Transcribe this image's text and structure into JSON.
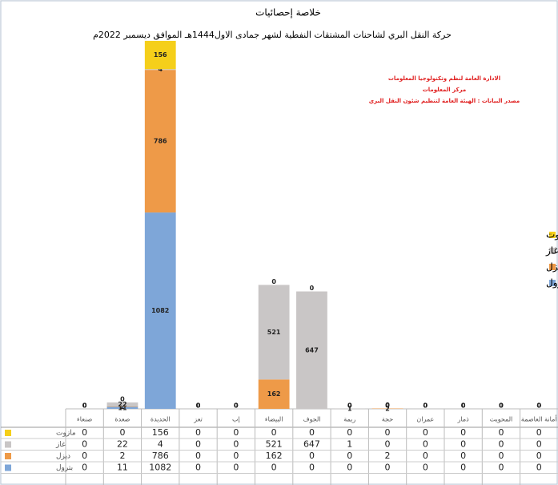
{
  "chart_data": {
    "type": "stacked_bar",
    "title": "خلاصة إحصائيات",
    "subtitle": "حركة النقل البري لشاحنات المشتقات النفطية لشهر جمادى الاول1444هـ الموافق ديسمبر 2022م",
    "annotations": [
      "الادارة العامة لنظم وتكنولوجيا المعلومات",
      "مركز المعلومات",
      "مصدر البيانات : الهيئة العامة لتنظيم شئون النقل البري"
    ],
    "categories": [
      "صنعاء",
      "صعدة",
      "الحديدة",
      "تعز",
      "إب",
      "البيضاء",
      "الجوف",
      "ريمة",
      "حجة",
      "عمران",
      "ذمار",
      "المحويت",
      "أمانة العاصمة"
    ],
    "series": [
      {
        "name": "بترول",
        "color": "#7ea6d8",
        "values": [
          0,
          11,
          1082,
          0,
          0,
          0,
          0,
          0,
          0,
          0,
          0,
          0,
          0
        ]
      },
      {
        "name": "ديزل",
        "color": "#ee9a48",
        "values": [
          0,
          2,
          786,
          0,
          0,
          162,
          0,
          0,
          2,
          0,
          0,
          0,
          0
        ]
      },
      {
        "name": "غاز",
        "color": "#c9c6c6",
        "values": [
          0,
          22,
          4,
          0,
          0,
          521,
          647,
          1,
          0,
          0,
          0,
          0,
          0
        ]
      },
      {
        "name": "مازوت",
        "color": "#f5cf1a",
        "values": [
          0,
          0,
          156,
          0,
          0,
          0,
          0,
          0,
          0,
          0,
          0,
          0,
          0
        ]
      }
    ],
    "ylim": [
      0,
      2200
    ],
    "legend": "right"
  }
}
